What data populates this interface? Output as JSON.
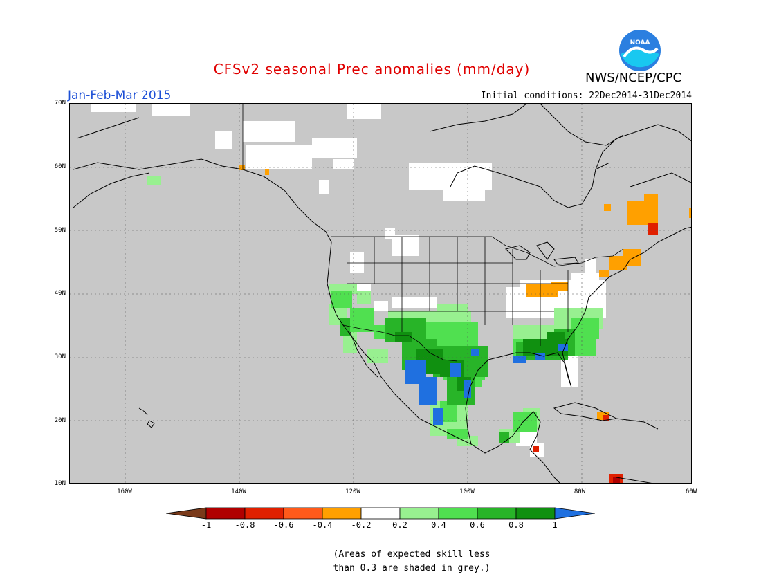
{
  "title": "CFSv2 seasonal Prec anomalies (mm/day)",
  "period": "Jan-Feb-Mar 2015",
  "initial_conditions": "Initial conditions: 22Dec2014-31Dec2014",
  "agency": "NWS/NCEP/CPC",
  "logo_text": "NOAA",
  "lat_labels": [
    "70N",
    "60N",
    "50N",
    "40N",
    "30N",
    "20N",
    "10N"
  ],
  "lon_labels": [
    "160W",
    "140W",
    "120W",
    "100W",
    "80W",
    "60W"
  ],
  "colorbar": {
    "labels": [
      "-1",
      "-0.8",
      "-0.6",
      "-0.4",
      "-0.2",
      "0.2",
      "0.4",
      "0.6",
      "0.8",
      "1"
    ],
    "colors": [
      "#7a3a1a",
      "#b00000",
      "#e02000",
      "#ff5a1a",
      "#ffa000",
      "#ffffff",
      "#98f090",
      "#50e050",
      "#28b428",
      "#109010",
      "#1f70e0"
    ]
  },
  "note_lines": [
    "(Areas of expected skill less",
    "than 0.3 are shaded in grey.)"
  ],
  "colors": {
    "grey_low_skill": "#c8c8c8",
    "title_red": "#e00000",
    "period_blue": "#1c4fd6"
  }
}
